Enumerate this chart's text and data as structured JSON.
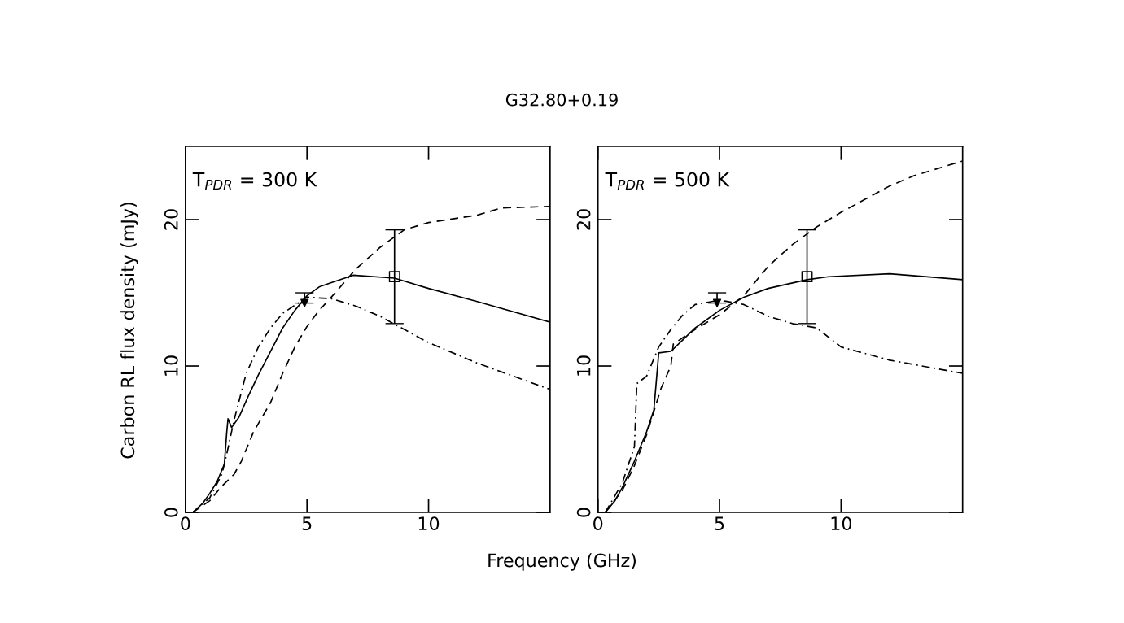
{
  "chart_data": [
    {
      "type": "line",
      "title": "G32.80+0.19",
      "xlabel": "Frequency (GHz)",
      "ylabel": "Carbon RL flux density (mJy)",
      "annotations": [
        "T$_{PDR}$ = 300 K"
      ],
      "xlim": [
        0,
        15
      ],
      "ylim": [
        0,
        25
      ],
      "xticks": [
        0,
        5,
        10
      ],
      "yticks": [
        0,
        10,
        20
      ],
      "series": [
        {
          "color": "#000000",
          "line_style": "solid",
          "marker": "none",
          "x": [
            0.3,
            0.7,
            1,
            1.3,
            1.6,
            1.7,
            1.75,
            1.9,
            2.2,
            2.6,
            3,
            3.5,
            4,
            4.5,
            5,
            5.5,
            6,
            6.9,
            8.6,
            10,
            12,
            15
          ],
          "values": [
            0,
            0.6,
            1.3,
            2.1,
            3.3,
            5.5,
            6.4,
            5.8,
            6.5,
            8,
            9.4,
            11,
            12.6,
            13.8,
            14.8,
            15.4,
            15.7,
            16.2,
            16.0,
            15.3,
            14.4,
            13.0
          ]
        },
        {
          "color": "#000000",
          "line_style": "dashed",
          "marker": "none",
          "x": [
            0.3,
            1,
            1.5,
            2,
            2.3,
            2.8,
            3.5,
            4,
            4.5,
            5,
            5.5,
            6,
            7,
            8,
            9,
            10,
            12,
            13,
            15
          ],
          "values": [
            0,
            0.8,
            1.8,
            2.6,
            3.5,
            5.5,
            7.5,
            9.5,
            11.3,
            12.7,
            13.8,
            14.7,
            16.6,
            18.1,
            19.3,
            19.8,
            20.3,
            20.8,
            20.9
          ]
        },
        {
          "color": "#000000",
          "line_style": "dashdot",
          "marker": "none",
          "x": [
            0.3,
            1,
            1.5,
            1.7,
            2,
            2.5,
            3,
            3.5,
            4,
            5,
            6,
            7,
            8,
            9,
            10,
            12,
            15
          ],
          "values": [
            0,
            1,
            2.6,
            4,
            6.3,
            9.5,
            11.3,
            12.6,
            13.6,
            14.7,
            14.6,
            14.1,
            13.4,
            12.5,
            11.6,
            10.2,
            8.4
          ]
        },
        {
          "type": "scatter",
          "color": "#000000",
          "marker": "triangle",
          "x": [
            4.9
          ],
          "values": [
            14.3
          ],
          "errors": [
            [
              14.3,
              15
            ]
          ]
        },
        {
          "type": "scatter",
          "color": "#000000",
          "marker": "square",
          "x": [
            8.6
          ],
          "values": [
            16.1
          ],
          "errors": [
            [
              12.9,
              19.3
            ]
          ]
        }
      ]
    },
    {
      "type": "line",
      "annotations": [
        "T$_{PDR}$ = 500 K"
      ],
      "xlim": [
        0,
        15
      ],
      "ylim": [
        0,
        25
      ],
      "xticks": [
        0,
        5,
        10
      ],
      "yticks": [
        0,
        10,
        20
      ],
      "series": [
        {
          "color": "#000000",
          "line_style": "solid",
          "marker": "none",
          "x": [
            0.3,
            0.7,
            1,
            1.5,
            2,
            2.3,
            2.5,
            3,
            3.5,
            4,
            5,
            6,
            7,
            8.6,
            9.5,
            12,
            15
          ],
          "values": [
            0,
            0.8,
            1.7,
            3.5,
            5.5,
            7,
            10.9,
            11,
            11.8,
            12.6,
            13.8,
            14.7,
            15.3,
            15.9,
            16.1,
            16.3,
            15.9
          ]
        },
        {
          "color": "#000000",
          "line_style": "dashed",
          "marker": "none",
          "x": [
            0.3,
            1,
            1.5,
            2,
            2.6,
            3,
            3.1,
            4,
            5,
            6,
            7,
            8,
            9,
            10,
            11,
            12,
            13,
            15
          ],
          "values": [
            0,
            1.5,
            3.2,
            5.3,
            8.5,
            10,
            11.5,
            12.5,
            13.5,
            14.8,
            16.8,
            18.3,
            19.5,
            20.5,
            21.4,
            22.3,
            23,
            24
          ]
        },
        {
          "color": "#000000",
          "line_style": "dashdot",
          "marker": "none",
          "x": [
            0.3,
            1,
            1.5,
            1.6,
            2,
            2.5,
            3,
            3.5,
            4,
            5,
            6,
            7,
            8,
            9,
            10,
            12,
            15
          ],
          "values": [
            0,
            2,
            4.5,
            8.8,
            9.3,
            11.3,
            12.5,
            13.5,
            14.2,
            14.5,
            14.2,
            13.4,
            12.9,
            12.6,
            11.3,
            10.4,
            9.5
          ]
        },
        {
          "type": "scatter",
          "color": "#000000",
          "marker": "triangle",
          "x": [
            4.9
          ],
          "values": [
            14.3
          ],
          "errors": [
            [
              14.3,
              15
            ]
          ]
        },
        {
          "type": "scatter",
          "color": "#000000",
          "marker": "square",
          "x": [
            8.6
          ],
          "values": [
            16.1
          ],
          "errors": [
            [
              12.9,
              19.3
            ]
          ]
        }
      ]
    }
  ]
}
